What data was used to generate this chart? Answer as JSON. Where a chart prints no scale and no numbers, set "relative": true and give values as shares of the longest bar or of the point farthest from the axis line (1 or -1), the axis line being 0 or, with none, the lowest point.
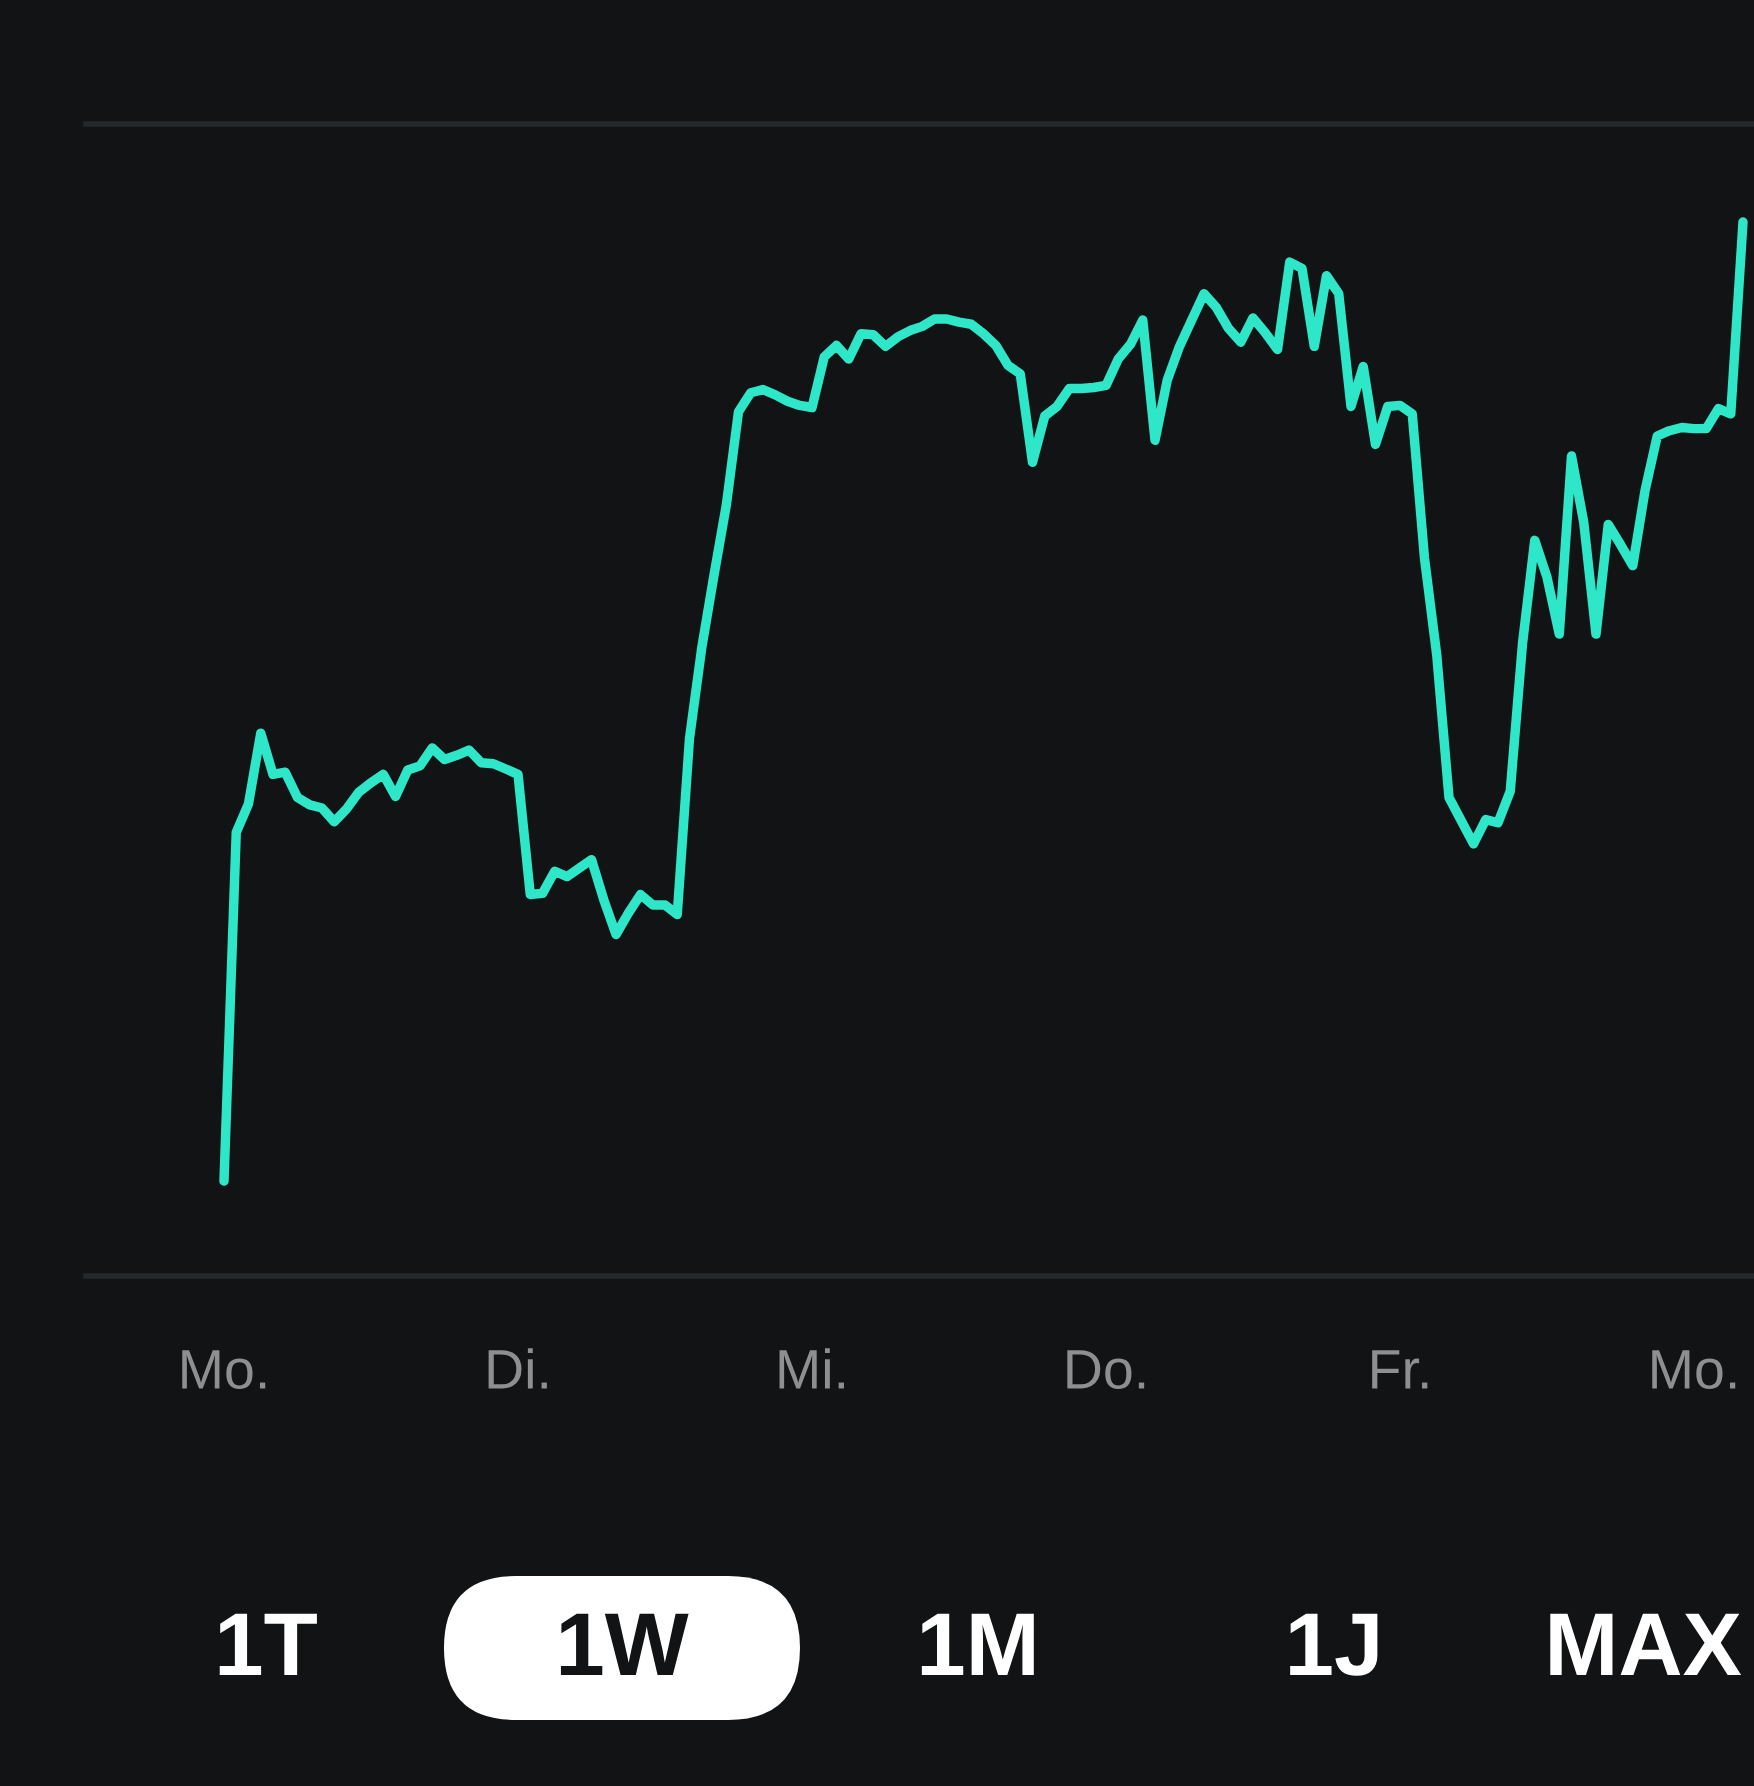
{
  "chart_data": {
    "type": "line",
    "relative": true,
    "tick_labels": "x",
    "categories": [
      "Mo.",
      null,
      null,
      null,
      null,
      null,
      null,
      null,
      null,
      null,
      null,
      null,
      null,
      null,
      null,
      null,
      null,
      null,
      null,
      null,
      null,
      null,
      null,
      null,
      "Di.",
      null,
      null,
      null,
      null,
      null,
      null,
      null,
      null,
      null,
      null,
      null,
      null,
      null,
      null,
      null,
      null,
      null,
      null,
      null,
      null,
      null,
      null,
      null,
      "Mi.",
      null,
      null,
      null,
      null,
      null,
      null,
      null,
      null,
      null,
      null,
      null,
      null,
      null,
      null,
      null,
      null,
      null,
      null,
      null,
      null,
      null,
      null,
      null,
      "Do.",
      null,
      null,
      null,
      null,
      null,
      null,
      null,
      null,
      null,
      null,
      null,
      null,
      null,
      null,
      null,
      null,
      null,
      null,
      null,
      null,
      null,
      null,
      null,
      "Fr.",
      null,
      null,
      null,
      null,
      null,
      null,
      null,
      null,
      null,
      null,
      null,
      null,
      null,
      null,
      null,
      null,
      null,
      null,
      null,
      null,
      null,
      null,
      null,
      "Mo.",
      null,
      null,
      null,
      null
    ],
    "series": [
      {
        "color": "#2ee6c8",
        "values": [
          0.09,
          0.421,
          0.448,
          0.515,
          0.476,
          0.478,
          0.454,
          0.447,
          0.444,
          0.431,
          0.443,
          0.459,
          0.468,
          0.476,
          0.455,
          0.48,
          0.484,
          0.501,
          0.49,
          0.494,
          0.499,
          0.487,
          0.486,
          0.481,
          0.476,
          0.362,
          0.363,
          0.384,
          0.379,
          0.387,
          0.395,
          0.357,
          0.324,
          0.344,
          0.362,
          0.352,
          0.352,
          0.343,
          0.51,
          0.596,
          0.665,
          0.731,
          0.82,
          0.838,
          0.841,
          0.836,
          0.83,
          0.826,
          0.824,
          0.872,
          0.883,
          0.87,
          0.894,
          0.893,
          0.882,
          0.891,
          0.897,
          0.901,
          0.908,
          0.908,
          0.905,
          0.903,
          0.894,
          0.883,
          0.864,
          0.856,
          0.772,
          0.816,
          0.825,
          0.842,
          0.842,
          0.843,
          0.845,
          0.87,
          0.884,
          0.907,
          0.793,
          0.85,
          0.882,
          0.907,
          0.932,
          0.919,
          0.899,
          0.886,
          0.909,
          0.895,
          0.879,
          0.962,
          0.956,
          0.882,
          0.949,
          0.932,
          0.825,
          0.863,
          0.789,
          0.825,
          0.826,
          0.818,
          0.681,
          0.589,
          0.454,
          0.432,
          0.41,
          0.433,
          0.43,
          0.46,
          0.6,
          0.698,
          0.663,
          0.609,
          0.778,
          0.715,
          0.609,
          0.713,
          0.694,
          0.674,
          0.745,
          0.797,
          0.802,
          0.805,
          0.804,
          0.804,
          0.823,
          0.818,
          1.0
        ]
      }
    ],
    "annotations": [
      "1T",
      "1W",
      "1M",
      "1J",
      "MAX"
    ]
  }
}
